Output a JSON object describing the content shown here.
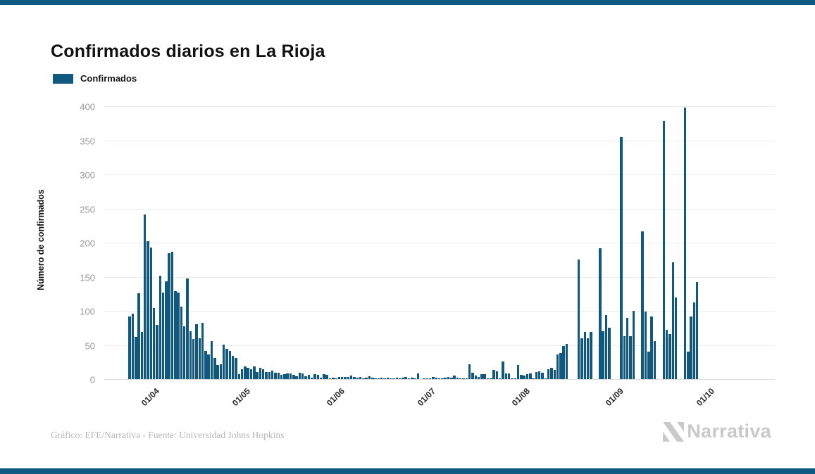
{
  "theme": {
    "accent": "#0f5880",
    "grid": "#ececec",
    "axis_text": "#9a9a9a",
    "tick_text": "#2b2b2b",
    "muted": "#b8b8b8",
    "logo_gray": "#c9c9c9"
  },
  "header": {
    "title": "Confirmados diarios en La Rioja"
  },
  "legend": {
    "items": [
      {
        "label": "Confirmados",
        "color": "#0f5880"
      }
    ]
  },
  "chart_data": {
    "type": "bar",
    "title": "Confirmados diarios en La Rioja",
    "xlabel": "",
    "ylabel": "Número de confirmados",
    "ylim": [
      0,
      400
    ],
    "grid": "horizontal",
    "legend_position": "top-left",
    "bar_color": "#0f5880",
    "y_ticks": [
      0,
      50,
      100,
      150,
      200,
      250,
      300,
      350,
      400
    ],
    "x_ticks": [
      {
        "label": "01/04",
        "index": 16
      },
      {
        "label": "01/05",
        "index": 46
      },
      {
        "label": "01/06",
        "index": 77
      },
      {
        "label": "01/07",
        "index": 107
      },
      {
        "label": "01/08",
        "index": 138
      },
      {
        "label": "01/09",
        "index": 169
      },
      {
        "label": "01/10",
        "index": 199
      }
    ],
    "series": [
      {
        "name": "Confirmados",
        "values": [
          0,
          0,
          0,
          0,
          0,
          0,
          0,
          0,
          92,
          96,
          62,
          126,
          69,
          241,
          202,
          193,
          104,
          79,
          152,
          127,
          143,
          185,
          187,
          129,
          127,
          106,
          77,
          147,
          70,
          59,
          80,
          60,
          83,
          41,
          36,
          56,
          31,
          21,
          22,
          51,
          44,
          41,
          34,
          31,
          7,
          14,
          19,
          17,
          14,
          19,
          10,
          16,
          14,
          10,
          10,
          12,
          9,
          9,
          6,
          7,
          8,
          8,
          6,
          4,
          9,
          8,
          4,
          6,
          2,
          7,
          6,
          2,
          7,
          6,
          1,
          2,
          1,
          3,
          3,
          3,
          3,
          5,
          3,
          2,
          3,
          1,
          2,
          4,
          2,
          1,
          1,
          2,
          1,
          2,
          1,
          1,
          2,
          1,
          2,
          3,
          1,
          2,
          1,
          8,
          0,
          1,
          1,
          1,
          3,
          2,
          1,
          1,
          2,
          3,
          2,
          5,
          2,
          1,
          1,
          1,
          22,
          9,
          5,
          3,
          7,
          7,
          1,
          1,
          13,
          11,
          1,
          26,
          8,
          8,
          1,
          1,
          21,
          6,
          5,
          7,
          8,
          1,
          10,
          11,
          9,
          1,
          14,
          16,
          13,
          36,
          38,
          48,
          52,
          0,
          0,
          0,
          175,
          60,
          69,
          60,
          69,
          0,
          0,
          192,
          70,
          94,
          75,
          0,
          0,
          0,
          355,
          63,
          90,
          63,
          100,
          0,
          0,
          217,
          99,
          40,
          92,
          56,
          0,
          0,
          378,
          72,
          66,
          171,
          120,
          0,
          0,
          398,
          40,
          92,
          112,
          142,
          0,
          0,
          0,
          0,
          0,
          0,
          0,
          0,
          0,
          0,
          0,
          0,
          0,
          0,
          0,
          0,
          0,
          0,
          0,
          0,
          0,
          0,
          0,
          0,
          0
        ]
      }
    ]
  },
  "footer": {
    "credit": "Gráfico: EFE/Narrativa - Fuente: Universidad Johns Hopkins",
    "brand": "Narrativa"
  }
}
